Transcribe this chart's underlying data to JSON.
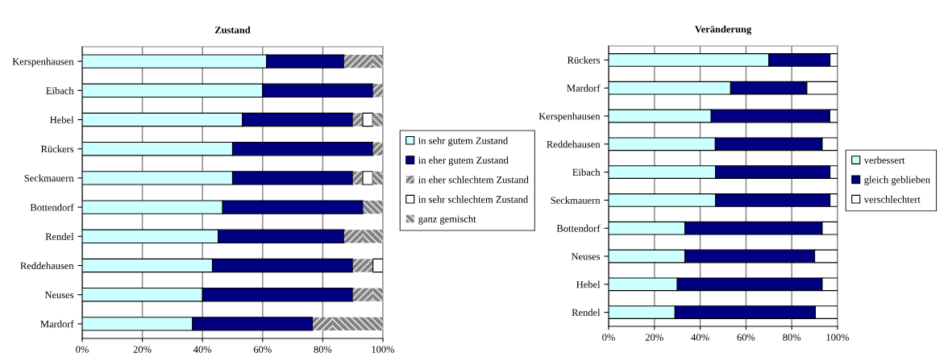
{
  "chart_data": [
    {
      "type": "bar",
      "orientation": "horizontal",
      "stacked": true,
      "title": "Zustand",
      "categories": [
        "Kerspenhausen",
        "Eibach",
        "Hebel",
        "Rückers",
        "Seckmauern",
        "Bottendorf",
        "Rendel",
        "Reddehausen",
        "Neuses",
        "Mardorf"
      ],
      "series": [
        {
          "name": "in sehr gutem Zustand",
          "color": "#ccffff",
          "values": [
            61.3,
            60,
            53.3,
            50,
            50,
            46.7,
            45.2,
            43.3,
            40,
            36.7
          ]
        },
        {
          "name": "in eher gutem Zustand",
          "color": "#000080",
          "values": [
            25.8,
            36.7,
            36.7,
            46.7,
            40,
            46.7,
            41.9,
            46.7,
            50,
            40
          ]
        },
        {
          "name": "in eher schlechtem Zustand",
          "color": "#808080",
          "values": [
            9.7,
            3.3,
            3.3,
            3.3,
            3.3,
            0,
            6.5,
            6.7,
            6.7,
            6.7
          ]
        },
        {
          "name": "in sehr schlechtem Zustand",
          "color": "#ffffff",
          "values": [
            0,
            0,
            3.3,
            0,
            3.3,
            0,
            0,
            3.3,
            0,
            0
          ]
        },
        {
          "name": "ganz gemischt",
          "color": "#808080",
          "values": [
            3.2,
            0,
            3.4,
            0,
            3.4,
            6.6,
            6.4,
            0,
            3.3,
            16.6
          ]
        }
      ],
      "xlim": [
        0,
        100
      ],
      "xticks": [
        {
          "value": 0,
          "label": "0%"
        },
        {
          "value": 20,
          "label": "20%"
        },
        {
          "value": 40,
          "label": "40%"
        },
        {
          "value": 60,
          "label": "60%"
        },
        {
          "value": 80,
          "label": "80%"
        },
        {
          "value": 100,
          "label": "100%"
        }
      ],
      "grid": "x",
      "legend": "right"
    },
    {
      "type": "bar",
      "orientation": "horizontal",
      "stacked": true,
      "title": "Veränderung",
      "categories": [
        "Rückers",
        "Mardorf",
        "Kerspenhausen",
        "Reddehausen",
        "Eibach",
        "Seckmauern",
        "Bottendorf",
        "Neuses",
        "Hebel",
        "Rendel"
      ],
      "series": [
        {
          "name": "verbessert",
          "color": "#ccffff",
          "values": [
            70,
            53.3,
            44.8,
            46.6,
            46.7,
            46.7,
            33.3,
            33.3,
            30,
            29
          ]
        },
        {
          "name": "gleich geblieben",
          "color": "#000080",
          "values": [
            26.7,
            33.3,
            51.8,
            46.7,
            50,
            50,
            60,
            56.7,
            63.3,
            61.3
          ]
        },
        {
          "name": "verschlechtert",
          "color": "#ffffff",
          "values": [
            3.3,
            13.4,
            3.4,
            6.7,
            3.3,
            3.3,
            6.7,
            10,
            6.7,
            9.7
          ]
        }
      ],
      "xlim": [
        0,
        100
      ],
      "xticks": [
        {
          "value": 0,
          "label": "0%"
        },
        {
          "value": 20,
          "label": "20%"
        },
        {
          "value": 40,
          "label": "40%"
        },
        {
          "value": 60,
          "label": "60%"
        },
        {
          "value": 80,
          "label": "80%"
        },
        {
          "value": 100,
          "label": "100%"
        }
      ],
      "grid": "x",
      "legend": "right"
    }
  ]
}
